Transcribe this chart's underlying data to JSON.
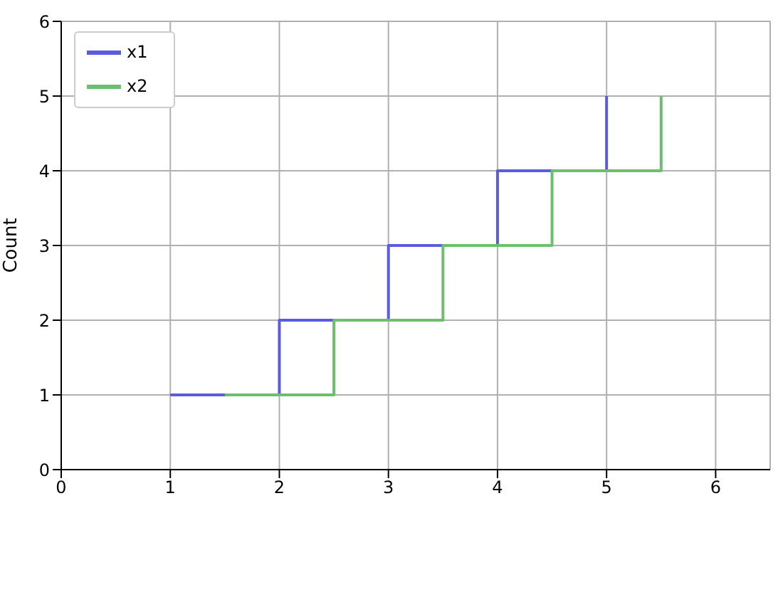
{
  "chart_data": {
    "type": "step",
    "ylabel": "Count",
    "series": [
      {
        "name": "x1",
        "color": "#5b5be0",
        "x": [
          1,
          2,
          3,
          4,
          5
        ],
        "values": [
          1,
          2,
          3,
          4,
          5
        ]
      },
      {
        "name": "x2",
        "color": "#6cbf6c",
        "x": [
          1.5,
          2.5,
          3.5,
          4.5,
          5.5
        ],
        "values": [
          1,
          2,
          3,
          4,
          5
        ]
      }
    ],
    "xlim": [
      0,
      6.5
    ],
    "xticks": [
      0,
      1,
      2,
      3,
      4,
      5,
      6
    ],
    "ylim": [
      0,
      6
    ],
    "yticks": [
      0,
      1,
      2,
      3,
      4,
      5,
      6
    ],
    "grid": true,
    "legend": "top left",
    "marker": "none",
    "line_style": "solid"
  }
}
